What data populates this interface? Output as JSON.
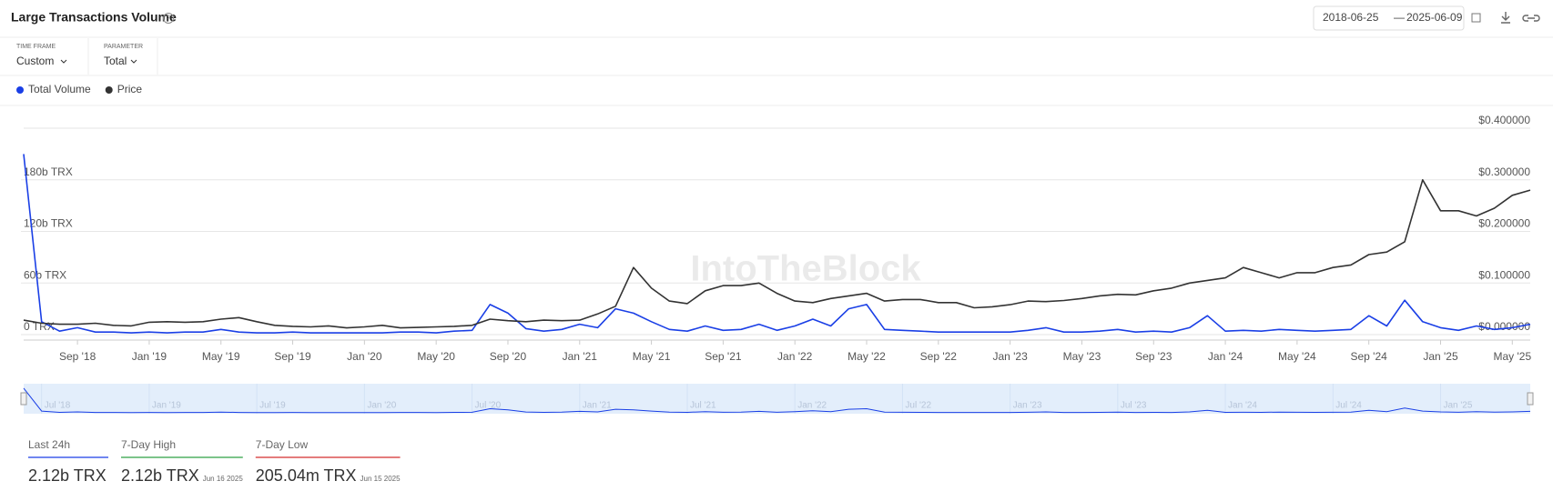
{
  "header": {
    "title": "Large Transactions Volume",
    "date_start": "2018-06-25",
    "date_separator": "—",
    "date_end": "2025-06-09"
  },
  "filters": [
    {
      "label": "TIME FRAME",
      "value": "Custom"
    },
    {
      "label": "PARAMETER",
      "value": "Total"
    }
  ],
  "watermark": "IntoTheBlock",
  "chart_data": {
    "type": "line",
    "x": [
      "2018-06",
      "2018-07",
      "2018-08",
      "2018-09",
      "2018-10",
      "2018-11",
      "2018-12",
      "2019-01",
      "2019-02",
      "2019-03",
      "2019-04",
      "2019-05",
      "2019-06",
      "2019-07",
      "2019-08",
      "2019-09",
      "2019-10",
      "2019-11",
      "2019-12",
      "2020-01",
      "2020-02",
      "2020-03",
      "2020-04",
      "2020-05",
      "2020-06",
      "2020-07",
      "2020-08",
      "2020-09",
      "2020-10",
      "2020-11",
      "2020-12",
      "2021-01",
      "2021-02",
      "2021-03",
      "2021-04",
      "2021-05",
      "2021-06",
      "2021-07",
      "2021-08",
      "2021-09",
      "2021-10",
      "2021-11",
      "2021-12",
      "2022-01",
      "2022-02",
      "2022-03",
      "2022-04",
      "2022-05",
      "2022-06",
      "2022-07",
      "2022-08",
      "2022-09",
      "2022-10",
      "2022-11",
      "2022-12",
      "2023-01",
      "2023-02",
      "2023-03",
      "2023-04",
      "2023-05",
      "2023-06",
      "2023-07",
      "2023-08",
      "2023-09",
      "2023-10",
      "2023-11",
      "2023-12",
      "2024-01",
      "2024-02",
      "2024-03",
      "2024-04",
      "2024-05",
      "2024-06",
      "2024-07",
      "2024-08",
      "2024-09",
      "2024-10",
      "2024-11",
      "2024-12",
      "2025-01",
      "2025-02",
      "2025-03",
      "2025-04",
      "2025-05",
      "2025-06"
    ],
    "series": [
      {
        "name": "Total Volume",
        "color": "#1a3fe6",
        "axis": "y",
        "values": [
          210000000000,
          15000000000,
          4000000000,
          8000000000,
          3000000000,
          3000000000,
          2000000000,
          3000000000,
          2000000000,
          3000000000,
          3000000000,
          6000000000,
          3000000000,
          2000000000,
          2000000000,
          3000000000,
          2000000000,
          2000000000,
          2000000000,
          2000000000,
          2000000000,
          3000000000,
          3000000000,
          2000000000,
          4000000000,
          5000000000,
          35000000000,
          25000000000,
          7000000000,
          4000000000,
          6000000000,
          12000000000,
          8000000000,
          30000000000,
          25000000000,
          15000000000,
          6000000000,
          4000000000,
          10000000000,
          5000000000,
          6000000000,
          12000000000,
          5000000000,
          10000000000,
          18000000000,
          10000000000,
          30000000000,
          35000000000,
          6000000000,
          5000000000,
          4000000000,
          3000000000,
          3000000000,
          3000000000,
          3000000000,
          3000000000,
          5000000000,
          8000000000,
          3000000000,
          3000000000,
          4000000000,
          6000000000,
          3000000000,
          4000000000,
          3000000000,
          8000000000,
          22000000000,
          4000000000,
          5000000000,
          4000000000,
          6000000000,
          5000000000,
          4000000000,
          5000000000,
          6000000000,
          22000000000,
          10000000000,
          40000000000,
          15000000000,
          8000000000,
          5000000000,
          10000000000,
          6000000000,
          8000000000,
          12000000000
        ]
      },
      {
        "name": "Price",
        "color": "#333333",
        "axis": "y2",
        "values": [
          0.028,
          0.022,
          0.02,
          0.02,
          0.022,
          0.018,
          0.017,
          0.024,
          0.025,
          0.024,
          0.025,
          0.03,
          0.033,
          0.025,
          0.018,
          0.016,
          0.015,
          0.017,
          0.013,
          0.015,
          0.018,
          0.013,
          0.014,
          0.015,
          0.016,
          0.018,
          0.03,
          0.027,
          0.025,
          0.028,
          0.027,
          0.028,
          0.04,
          0.055,
          0.13,
          0.09,
          0.065,
          0.06,
          0.085,
          0.095,
          0.095,
          0.1,
          0.08,
          0.065,
          0.062,
          0.07,
          0.075,
          0.08,
          0.065,
          0.068,
          0.068,
          0.062,
          0.062,
          0.052,
          0.054,
          0.058,
          0.065,
          0.064,
          0.066,
          0.07,
          0.075,
          0.078,
          0.077,
          0.085,
          0.09,
          0.1,
          0.105,
          0.11,
          0.13,
          0.12,
          0.11,
          0.12,
          0.12,
          0.13,
          0.135,
          0.155,
          0.16,
          0.18,
          0.3,
          0.24,
          0.24,
          0.23,
          0.245,
          0.27,
          0.28
        ]
      }
    ],
    "xlim": [
      "2018-06",
      "2025-06"
    ],
    "xticks": [
      {
        "value": "2018-09",
        "label": "Sep '18"
      },
      {
        "value": "2019-01",
        "label": "Jan '19"
      },
      {
        "value": "2019-05",
        "label": "May '19"
      },
      {
        "value": "2019-09",
        "label": "Sep '19"
      },
      {
        "value": "2020-01",
        "label": "Jan '20"
      },
      {
        "value": "2020-05",
        "label": "May '20"
      },
      {
        "value": "2020-09",
        "label": "Sep '20"
      },
      {
        "value": "2021-01",
        "label": "Jan '21"
      },
      {
        "value": "2021-05",
        "label": "May '21"
      },
      {
        "value": "2021-09",
        "label": "Sep '21"
      },
      {
        "value": "2022-01",
        "label": "Jan '22"
      },
      {
        "value": "2022-05",
        "label": "May '22"
      },
      {
        "value": "2022-09",
        "label": "Sep '22"
      },
      {
        "value": "2023-01",
        "label": "Jan '23"
      },
      {
        "value": "2023-05",
        "label": "May '23"
      },
      {
        "value": "2023-09",
        "label": "Sep '23"
      },
      {
        "value": "2024-01",
        "label": "Jan '24"
      },
      {
        "value": "2024-05",
        "label": "May '24"
      },
      {
        "value": "2024-09",
        "label": "Sep '24"
      },
      {
        "value": "2025-01",
        "label": "Jan '25"
      },
      {
        "value": "2025-05",
        "label": "May '25"
      }
    ],
    "ylim": [
      0,
      240000000000
    ],
    "yticks": [
      {
        "value": 0,
        "label": "0 TRX"
      },
      {
        "value": 60000000000,
        "label": "60b TRX"
      },
      {
        "value": 120000000000,
        "label": "120b TRX"
      },
      {
        "value": 180000000000,
        "label": "180b TRX"
      }
    ],
    "y2lim": [
      0,
      0.4
    ],
    "y2ticks": [
      {
        "value": 0,
        "label": "$0.000000"
      },
      {
        "value": 0.1,
        "label": "$0.100000"
      },
      {
        "value": 0.2,
        "label": "$0.200000"
      },
      {
        "value": 0.3,
        "label": "$0.300000"
      },
      {
        "value": 0.4,
        "label": "$0.400000"
      }
    ],
    "grid": true,
    "legend": "top-left"
  },
  "navigator": {
    "xticks": [
      {
        "value": "2018-07",
        "label": "Jul '18"
      },
      {
        "value": "2019-01",
        "label": "Jan '19"
      },
      {
        "value": "2019-07",
        "label": "Jul '19"
      },
      {
        "value": "2020-01",
        "label": "Jan '20"
      },
      {
        "value": "2020-07",
        "label": "Jul '20"
      },
      {
        "value": "2021-01",
        "label": "Jan '21"
      },
      {
        "value": "2021-07",
        "label": "Jul '21"
      },
      {
        "value": "2022-01",
        "label": "Jan '22"
      },
      {
        "value": "2022-07",
        "label": "Jul '22"
      },
      {
        "value": "2023-01",
        "label": "Jan '23"
      },
      {
        "value": "2023-07",
        "label": "Jul '23"
      },
      {
        "value": "2024-01",
        "label": "Jan '24"
      },
      {
        "value": "2024-07",
        "label": "Jul '24"
      },
      {
        "value": "2025-01",
        "label": "Jan '25"
      }
    ]
  },
  "stats": [
    {
      "label": "Last 24h",
      "value": "2.12b TRX",
      "color": "#1a3fe6"
    },
    {
      "label": "7-Day High",
      "value": "2.12b TRX",
      "date": "Jun 16 2025",
      "color": "#2ea043"
    },
    {
      "label": "7-Day Low",
      "value": "205.04m TRX",
      "date": "Jun 15 2025",
      "color": "#d32f2f"
    }
  ]
}
